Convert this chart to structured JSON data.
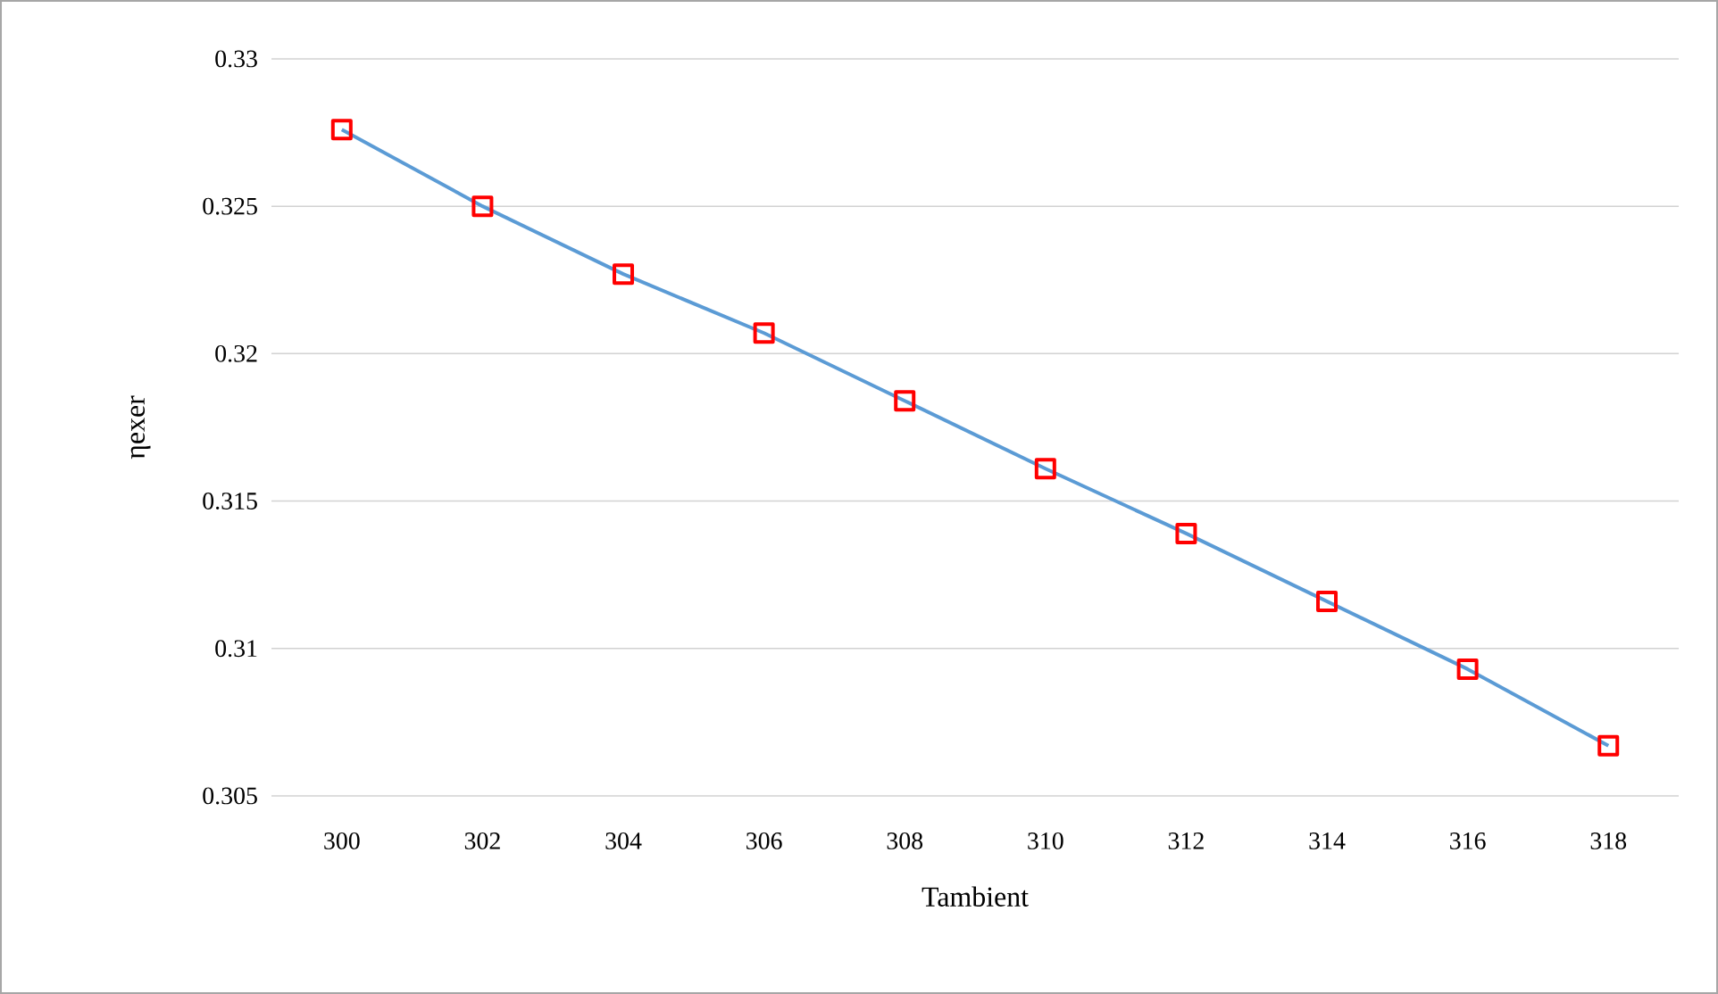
{
  "chart_data": {
    "type": "line",
    "xlabel": "Tambient",
    "ylabel": "ηexer",
    "categories": [
      "300",
      "302",
      "304",
      "306",
      "308",
      "310",
      "312",
      "314",
      "316",
      "318"
    ],
    "series": [
      {
        "color": "#5b9bd5",
        "values": [
          0.3276,
          0.325,
          0.3227,
          0.3207,
          0.3184,
          0.3161,
          0.3139,
          0.3116,
          0.3093,
          0.3067
        ]
      }
    ],
    "ylim": [
      0.305,
      0.33
    ],
    "yticks": [
      0.305,
      0.31,
      0.315,
      0.32,
      0.325,
      0.33
    ],
    "grid": "y",
    "marker": "square",
    "line_style": "solid"
  }
}
